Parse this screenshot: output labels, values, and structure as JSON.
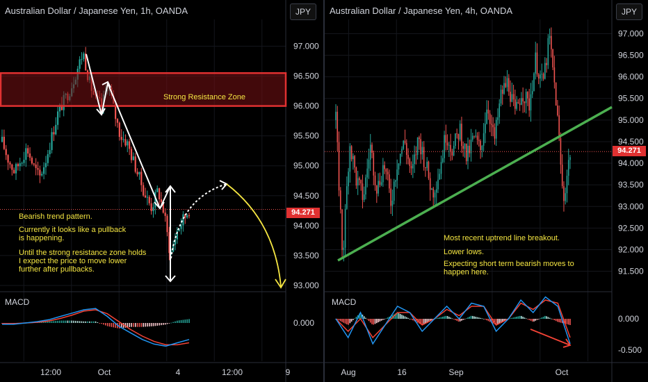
{
  "colors": {
    "up": "#26a69a",
    "down": "#ef5350",
    "macd": "#2196f3",
    "signal": "#f44336",
    "annotation": "#f5e642",
    "trendline": "#4caf50",
    "resistance": "#e03131"
  },
  "left": {
    "title": "Australian Dollar / Japanese Yen, 1h, OANDA",
    "currency_button": "JPY",
    "price_tag": "94.271",
    "resistance_label": "Strong Resistance Zone",
    "notes": [
      "Bearish trend pattern.",
      "Currently it looks like a pullback",
      "is happening.",
      "Until the strong resistance zone holds",
      "I expect the price to move lower",
      "further after pullbacks."
    ],
    "macd_label": "MACD"
  },
  "right": {
    "title": "Australian Dollar / Japanese Yen, 4h, OANDA",
    "currency_button": "JPY",
    "price_tag": "94.271",
    "notes": [
      "Most recent uptrend line breakout.",
      "Lower lows.",
      "Expecting short term bearish moves to",
      "happen here."
    ],
    "macd_label": "MACD"
  },
  "chart_data": [
    {
      "type": "candlestick",
      "title": "Australian Dollar / Japanese Yen, 1h, OANDA",
      "y_ticks": [
        "97.000",
        "96.500",
        "96.000",
        "95.500",
        "95.000",
        "94.500",
        "94.000",
        "93.500",
        "93.000"
      ],
      "x_ticks": [
        "12:00",
        "Oct",
        "4",
        "12:00",
        "9"
      ],
      "ylim": [
        93.0,
        97.4
      ],
      "last_price": 94.271,
      "resistance_zone": [
        96.0,
        96.55
      ],
      "close_path": [
        95.4,
        95.1,
        94.9,
        95.1,
        95.3,
        95.0,
        94.8,
        95.1,
        95.5,
        95.9,
        96.1,
        96.3,
        96.6,
        96.9,
        96.4,
        96.1,
        96.0,
        96.4,
        95.9,
        95.5,
        95.4,
        95.1,
        94.8,
        94.5,
        94.3,
        94.6,
        94.2,
        93.5,
        93.9,
        94.1,
        94.271
      ],
      "macd_ticks": [
        "0.000"
      ],
      "macd_line": [
        -0.02,
        -0.02,
        0.0,
        0.02,
        0.05,
        0.1,
        0.15,
        0.2,
        0.22,
        0.1,
        -0.05,
        -0.15,
        -0.25,
        -0.32,
        -0.35,
        -0.3,
        -0.25
      ],
      "signal_line": [
        -0.01,
        -0.01,
        0.0,
        0.01,
        0.03,
        0.07,
        0.12,
        0.18,
        0.2,
        0.14,
        0.02,
        -0.1,
        -0.2,
        -0.28,
        -0.33,
        -0.33,
        -0.3
      ]
    },
    {
      "type": "candlestick",
      "title": "Australian Dollar / Japanese Yen, 4h, OANDA",
      "y_ticks": [
        "97.000",
        "96.500",
        "96.000",
        "95.500",
        "95.000",
        "94.500",
        "94.000",
        "93.500",
        "93.000",
        "92.500",
        "92.000",
        "91.500"
      ],
      "x_ticks": [
        "Aug",
        "16",
        "Sep",
        "Oct"
      ],
      "ylim": [
        91.3,
        97.2
      ],
      "last_price": 94.271,
      "trendline": [
        91.75,
        95.3
      ],
      "close_path": [
        95.0,
        91.8,
        94.5,
        93.6,
        93.2,
        94.4,
        93.4,
        94.0,
        93.1,
        94.1,
        94.5,
        93.7,
        94.6,
        94.0,
        93.3,
        93.8,
        94.7,
        94.3,
        94.8,
        94.1,
        94.6,
        94.3,
        95.4,
        94.5,
        95.6,
        95.9,
        95.1,
        95.7,
        95.3,
        96.4,
        95.8,
        96.9,
        95.4,
        93.1,
        94.271
      ],
      "macd_ticks": [
        "0.000",
        "-0.500"
      ],
      "macd_line": [
        0.0,
        -0.3,
        0.1,
        -0.4,
        -0.1,
        0.2,
        0.1,
        -0.2,
        0.0,
        0.2,
        0.0,
        0.25,
        0.2,
        -0.2,
        0.0,
        0.3,
        0.1,
        0.35,
        0.2,
        -0.4
      ],
      "signal_line": [
        0.0,
        -0.2,
        0.0,
        -0.3,
        -0.1,
        0.1,
        0.1,
        -0.1,
        0.0,
        0.15,
        0.05,
        0.2,
        0.2,
        -0.1,
        0.0,
        0.25,
        0.15,
        0.3,
        0.25,
        -0.3
      ]
    }
  ]
}
